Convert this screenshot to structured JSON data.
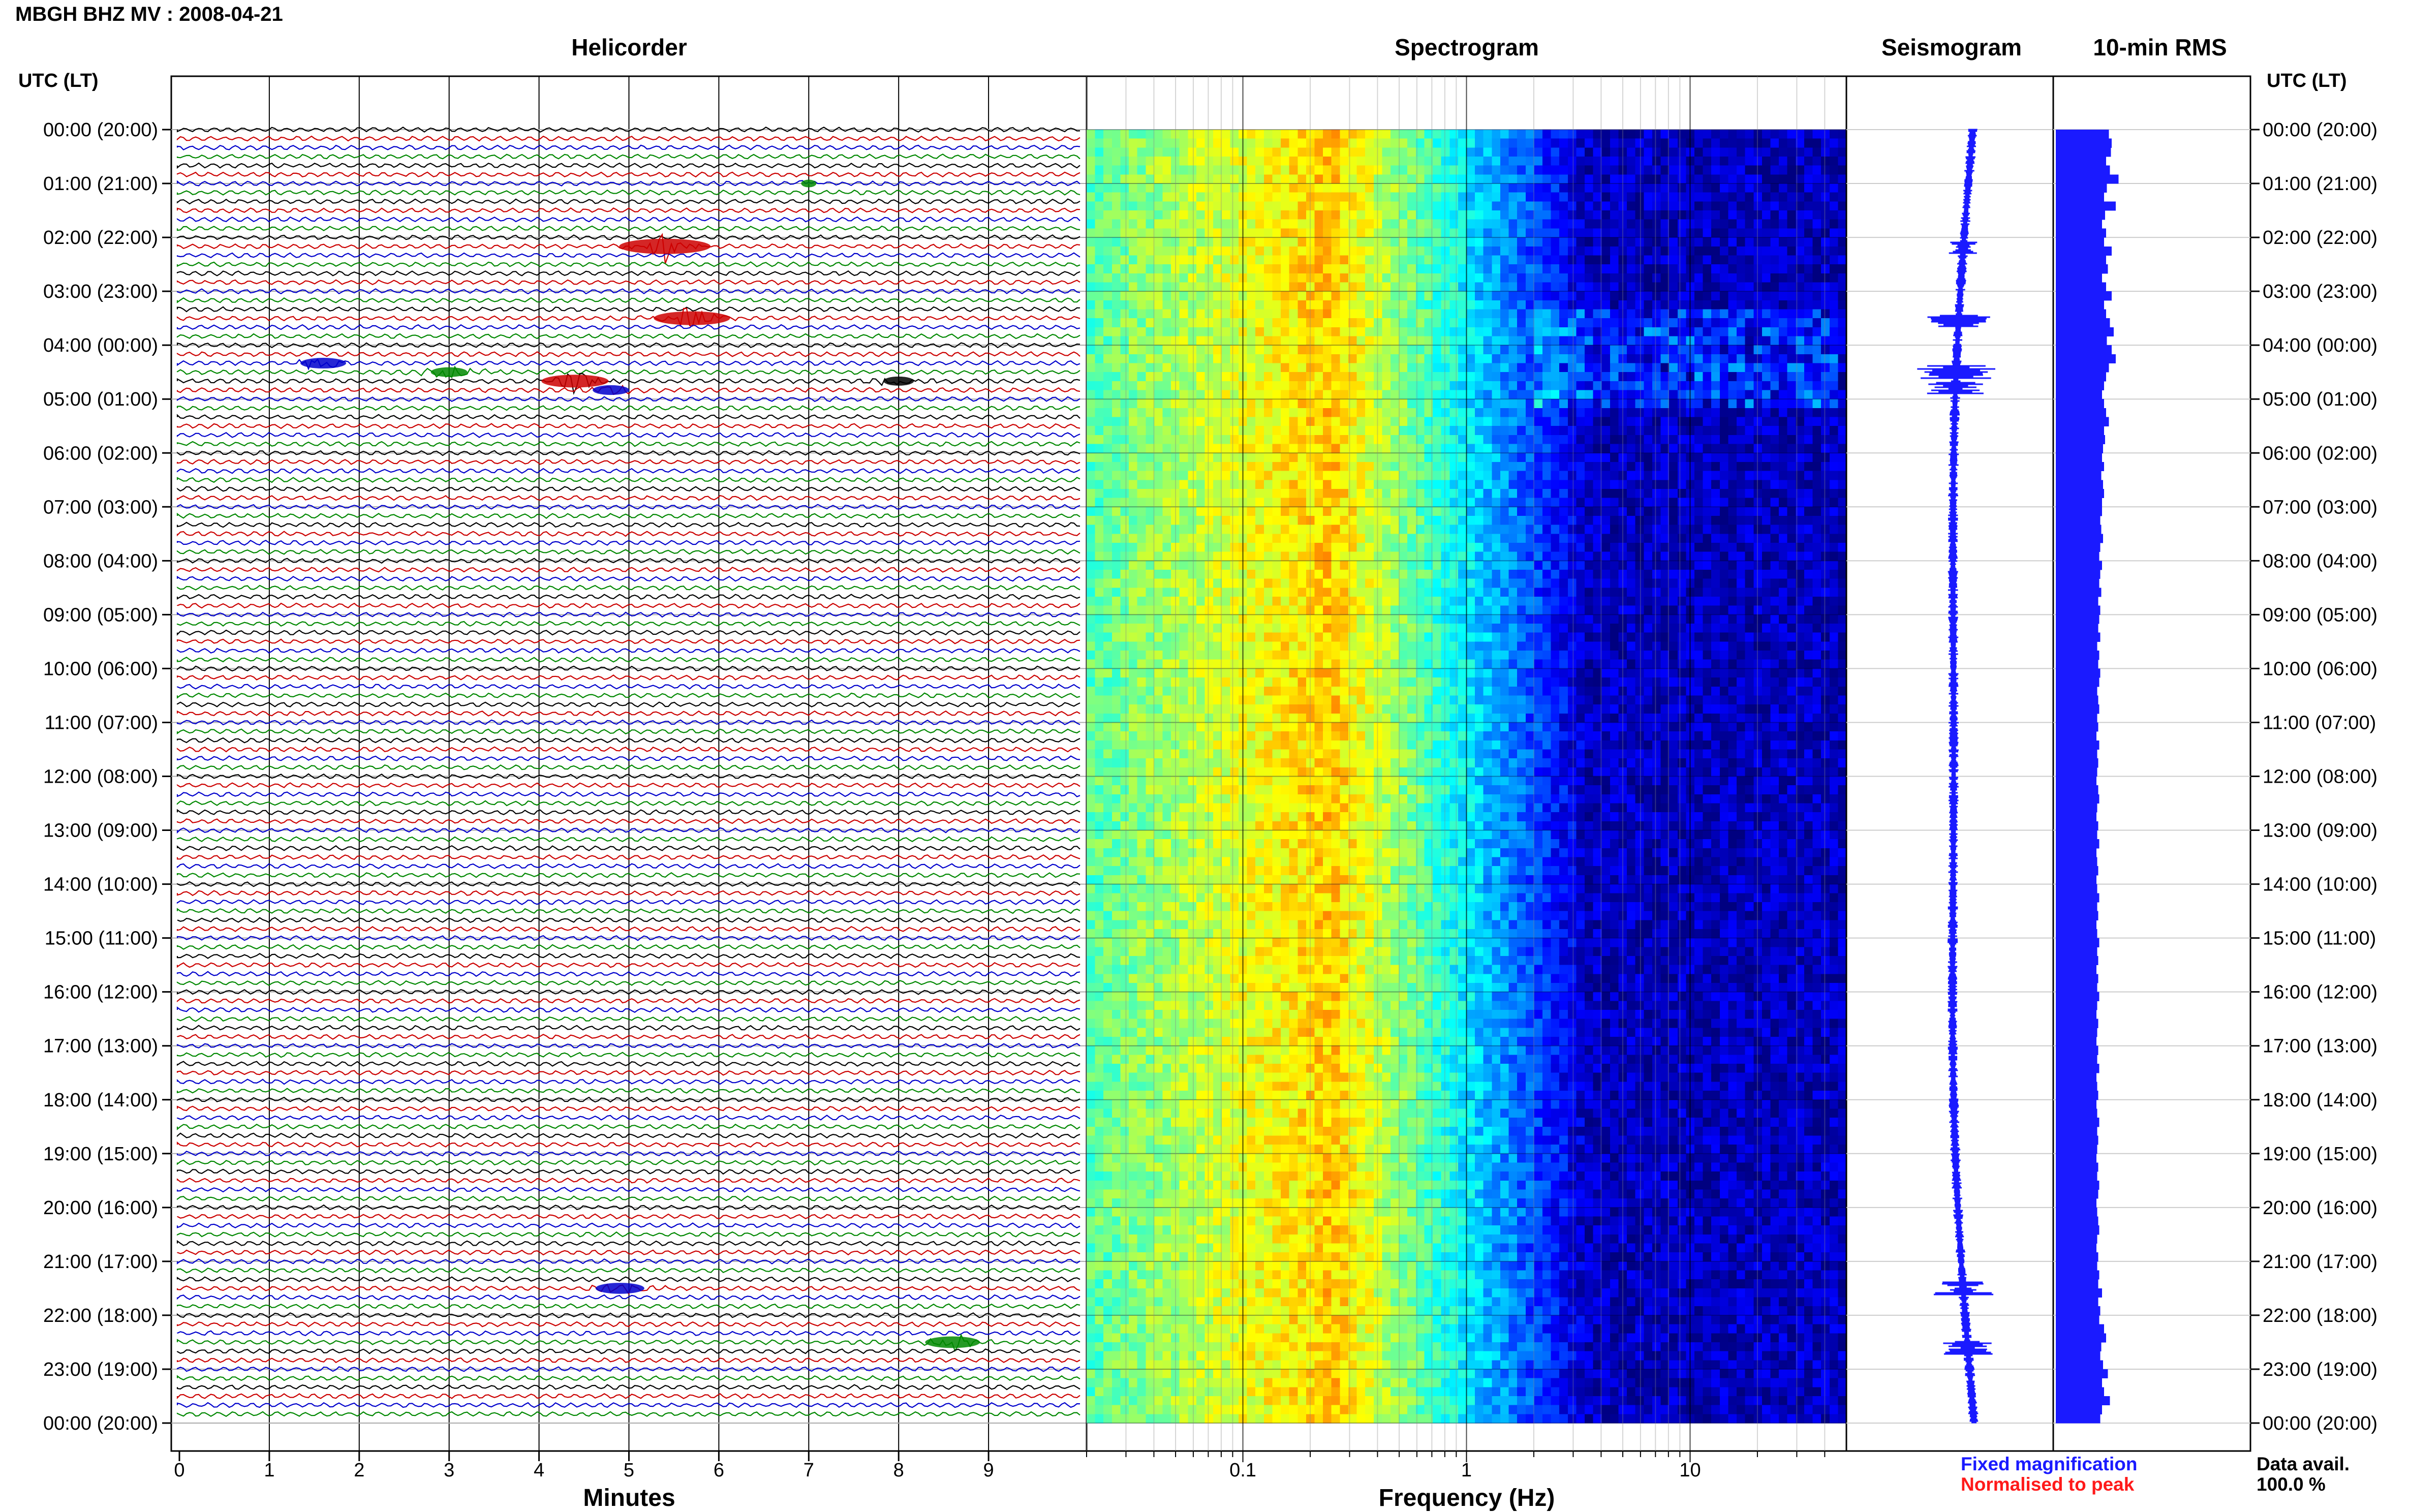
{
  "title": "MBGH BHZ MV : 2008-04-21",
  "panels": {
    "helicorder": "Helicorder",
    "spectrogram": "Spectrogram",
    "seismogram": "Seismogram",
    "rms": "10-min RMS"
  },
  "axis_left_label": "UTC (LT)",
  "axis_right_label": "UTC (LT)",
  "xlabels": {
    "helicorder": "Minutes",
    "spectrogram": "Frequency (Hz)"
  },
  "legend": {
    "fixed": "Fixed magnification",
    "normalised": "Normalised to peak",
    "fixed_color": "#1a1aff",
    "normalised_color": "#ff1a1a"
  },
  "data_avail": {
    "label": "Data avail.",
    "value": "100.0 %"
  },
  "chart_data": [
    {
      "type": "line",
      "title": "Helicorder",
      "xlabel": "Minutes",
      "ylabel": "UTC (LT)",
      "xlim": [
        0,
        10
      ],
      "x_ticks": [
        "0",
        "1",
        "2",
        "3",
        "4",
        "5",
        "6",
        "7",
        "8",
        "9"
      ],
      "y_ticks": [
        "00:00 (20:00)",
        "01:00 (21:00)",
        "02:00 (22:00)",
        "03:00 (23:00)",
        "04:00 (00:00)",
        "05:00 (01:00)",
        "06:00 (02:00)",
        "07:00 (03:00)",
        "08:00 (04:00)",
        "09:00 (05:00)",
        "10:00 (06:00)",
        "11:00 (07:00)",
        "12:00 (08:00)",
        "13:00 (09:00)",
        "14:00 (10:00)",
        "15:00 (11:00)",
        "16:00 (12:00)",
        "17:00 (13:00)",
        "18:00 (14:00)",
        "19:00 (15:00)",
        "20:00 (16:00)",
        "21:00 (17:00)",
        "22:00 (18:00)",
        "23:00 (19:00)",
        "00:00 (20:00)"
      ],
      "trace_colors": [
        "#000000",
        "#cc0000",
        "#0000cc",
        "#008800"
      ],
      "rows": 144,
      "events": [
        {
          "hour": 1.05,
          "minute": 7.0,
          "color": "#008800",
          "amp": 0.5
        },
        {
          "hour": 2.1,
          "minute": 5.4,
          "color": "#cc0000",
          "amp": 3.0
        },
        {
          "hour": 3.5,
          "minute": 5.7,
          "color": "#cc0000",
          "amp": 2.5
        },
        {
          "hour": 4.33,
          "minute": 1.6,
          "color": "#0000cc",
          "amp": 1.5
        },
        {
          "hour": 4.5,
          "minute": 3.0,
          "color": "#008800",
          "amp": 1.2
        },
        {
          "hour": 4.67,
          "minute": 4.4,
          "color": "#cc0000",
          "amp": 2.2
        },
        {
          "hour": 4.67,
          "minute": 8.0,
          "color": "#000000",
          "amp": 1.0
        },
        {
          "hour": 4.83,
          "minute": 4.8,
          "color": "#0000cc",
          "amp": 1.2
        },
        {
          "hour": 21.5,
          "minute": 4.9,
          "color": "#0000cc",
          "amp": 1.6
        },
        {
          "hour": 22.5,
          "minute": 8.6,
          "color": "#008800",
          "amp": 1.8
        }
      ]
    },
    {
      "type": "heatmap",
      "title": "Spectrogram",
      "xlabel": "Frequency (Hz)",
      "x_scale": "log",
      "xlim": [
        0.02,
        50
      ],
      "x_ticks": [
        "0.1",
        "1",
        "10"
      ],
      "peak_frequency": 0.25
    },
    {
      "type": "line",
      "title": "Seismogram",
      "color": "#1a1aff"
    },
    {
      "type": "bar",
      "title": "10-min RMS",
      "color": "#1a1aff",
      "orientation": "horizontal",
      "values": [
        0.55,
        0.58,
        0.57,
        0.52,
        0.56,
        0.65,
        0.53,
        0.5,
        0.62,
        0.51,
        0.48,
        0.52,
        0.5,
        0.58,
        0.52,
        0.54,
        0.48,
        0.52,
        0.58,
        0.5,
        0.52,
        0.56,
        0.6,
        0.53,
        0.58,
        0.62,
        0.55,
        0.52,
        0.5,
        0.48,
        0.5,
        0.52,
        0.55,
        0.5,
        0.51,
        0.49,
        0.48,
        0.5,
        0.47,
        0.49,
        0.5,
        0.48,
        0.48,
        0.46,
        0.47,
        0.49,
        0.46,
        0.45,
        0.48,
        0.46,
        0.45,
        0.47,
        0.44,
        0.46,
        0.45,
        0.44,
        0.46,
        0.43,
        0.45,
        0.44,
        0.46,
        0.45,
        0.43,
        0.44,
        0.45,
        0.43,
        0.44,
        0.42,
        0.45,
        0.43,
        0.44,
        0.43,
        0.42,
        0.44,
        0.45,
        0.43,
        0.42,
        0.44,
        0.43,
        0.45,
        0.42,
        0.43,
        0.44,
        0.42,
        0.43,
        0.45,
        0.43,
        0.44,
        0.42,
        0.43,
        0.45,
        0.43,
        0.44,
        0.42,
        0.44,
        0.43,
        0.45,
        0.43,
        0.42,
        0.44,
        0.43,
        0.42,
        0.44,
        0.43,
        0.45,
        0.42,
        0.43,
        0.44,
        0.42,
        0.43,
        0.45,
        0.43,
        0.44,
        0.43,
        0.42,
        0.44,
        0.43,
        0.45,
        0.44,
        0.42,
        0.43,
        0.44,
        0.45,
        0.43,
        0.42,
        0.44,
        0.43,
        0.45,
        0.44,
        0.48,
        0.44,
        0.46,
        0.45,
        0.5,
        0.52,
        0.47,
        0.46,
        0.49,
        0.54,
        0.48,
        0.5,
        0.56,
        0.48,
        0.46
      ]
    }
  ]
}
